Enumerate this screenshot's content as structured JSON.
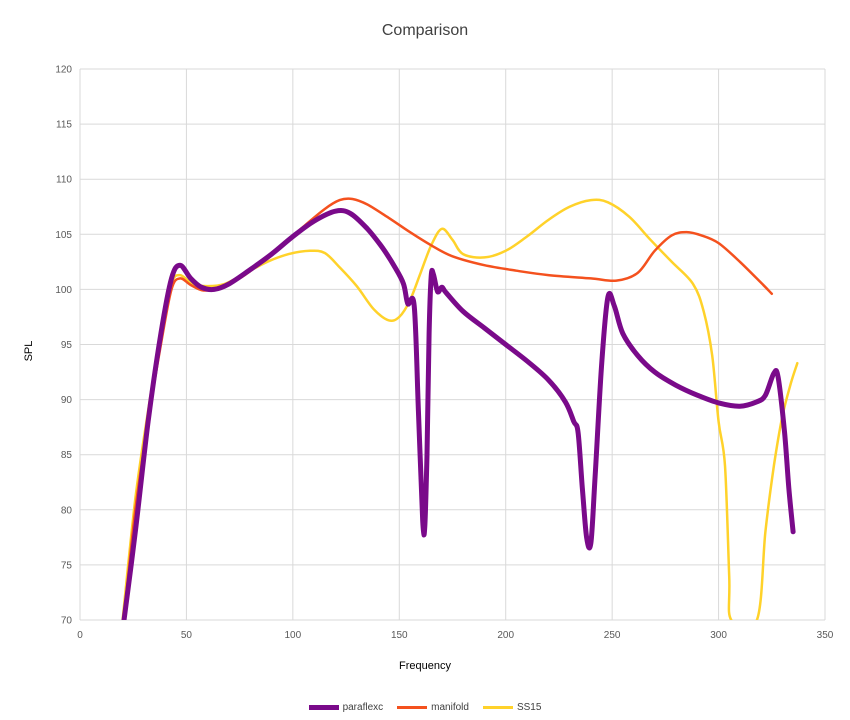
{
  "chart_data": {
    "type": "line",
    "title": "Comparison",
    "xlabel": "Frequency",
    "ylabel": "SPL",
    "xlim": [
      0,
      350
    ],
    "ylim": [
      70,
      120
    ],
    "xticks": [
      0,
      50,
      100,
      150,
      200,
      250,
      300,
      350
    ],
    "yticks": [
      70,
      75,
      80,
      85,
      90,
      95,
      100,
      105,
      110,
      115,
      120
    ],
    "grid": true,
    "legend_position": "bottom",
    "series": [
      {
        "name": "paraflexc",
        "color": "#7a0a8a",
        "width": 5,
        "points": [
          [
            20,
            69
          ],
          [
            26,
            78
          ],
          [
            32,
            88
          ],
          [
            38,
            96
          ],
          [
            43,
            101
          ],
          [
            47,
            102.2
          ],
          [
            52,
            101
          ],
          [
            57,
            100.2
          ],
          [
            63,
            100
          ],
          [
            70,
            100.5
          ],
          [
            80,
            101.8
          ],
          [
            90,
            103.2
          ],
          [
            100,
            104.8
          ],
          [
            110,
            106.2
          ],
          [
            120,
            107.1
          ],
          [
            127,
            106.9
          ],
          [
            135,
            105.5
          ],
          [
            142,
            103.8
          ],
          [
            148,
            102
          ],
          [
            152,
            100.5
          ],
          [
            154,
            98.7
          ],
          [
            157,
            98.5
          ],
          [
            159,
            89
          ],
          [
            161,
            79
          ],
          [
            162,
            78.5
          ],
          [
            163,
            85
          ],
          [
            164,
            96
          ],
          [
            165,
            101.2
          ],
          [
            166,
            101.4
          ],
          [
            168,
            99.8
          ],
          [
            170,
            100.2
          ],
          [
            172,
            99.7
          ],
          [
            180,
            98
          ],
          [
            190,
            96.5
          ],
          [
            200,
            95
          ],
          [
            210,
            93.5
          ],
          [
            220,
            91.8
          ],
          [
            228,
            89.8
          ],
          [
            232,
            88
          ],
          [
            234,
            87
          ],
          [
            236,
            82
          ],
          [
            238,
            77.5
          ],
          [
            240,
            77
          ],
          [
            242,
            83
          ],
          [
            245,
            93
          ],
          [
            248,
            99.3
          ],
          [
            251,
            98.5
          ],
          [
            255,
            96
          ],
          [
            262,
            94
          ],
          [
            270,
            92.5
          ],
          [
            280,
            91.3
          ],
          [
            290,
            90.4
          ],
          [
            300,
            89.7
          ],
          [
            310,
            89.4
          ],
          [
            318,
            89.8
          ],
          [
            322,
            90.4
          ],
          [
            326,
            92.4
          ],
          [
            328,
            92
          ],
          [
            331,
            87
          ],
          [
            333,
            82
          ],
          [
            335,
            78
          ]
        ]
      },
      {
        "name": "manifold",
        "color": "#f4511e",
        "width": 2.5,
        "points": [
          [
            20,
            69
          ],
          [
            26,
            80
          ],
          [
            32,
            88
          ],
          [
            38,
            95
          ],
          [
            43,
            100
          ],
          [
            47,
            101
          ],
          [
            52,
            100.4
          ],
          [
            58,
            99.9
          ],
          [
            65,
            100.2
          ],
          [
            75,
            101
          ],
          [
            85,
            102.4
          ],
          [
            95,
            104
          ],
          [
            105,
            105.7
          ],
          [
            115,
            107.3
          ],
          [
            122,
            108.1
          ],
          [
            128,
            108.2
          ],
          [
            135,
            107.7
          ],
          [
            145,
            106.5
          ],
          [
            155,
            105.2
          ],
          [
            165,
            104
          ],
          [
            175,
            103
          ],
          [
            190,
            102.2
          ],
          [
            205,
            101.7
          ],
          [
            220,
            101.3
          ],
          [
            240,
            101
          ],
          [
            252,
            100.8
          ],
          [
            262,
            101.5
          ],
          [
            270,
            103.5
          ],
          [
            278,
            104.9
          ],
          [
            285,
            105.2
          ],
          [
            292,
            104.9
          ],
          [
            300,
            104.2
          ],
          [
            310,
            102.5
          ],
          [
            320,
            100.6
          ],
          [
            325,
            99.6
          ]
        ]
      },
      {
        "name": "SS15",
        "color": "#ffd22a",
        "width": 2.5,
        "points": [
          [
            20,
            70
          ],
          [
            26,
            81
          ],
          [
            32,
            89
          ],
          [
            38,
            96
          ],
          [
            43,
            100.5
          ],
          [
            47,
            101.3
          ],
          [
            53,
            100.5
          ],
          [
            60,
            100.3
          ],
          [
            68,
            100.5
          ],
          [
            78,
            101.5
          ],
          [
            88,
            102.5
          ],
          [
            98,
            103.2
          ],
          [
            108,
            103.5
          ],
          [
            115,
            103.3
          ],
          [
            122,
            102
          ],
          [
            130,
            100.3
          ],
          [
            138,
            98.2
          ],
          [
            145,
            97.2
          ],
          [
            150,
            97.5
          ],
          [
            155,
            99
          ],
          [
            160,
            101.5
          ],
          [
            165,
            104
          ],
          [
            170,
            105.5
          ],
          [
            175,
            104.5
          ],
          [
            180,
            103.2
          ],
          [
            190,
            102.9
          ],
          [
            200,
            103.5
          ],
          [
            210,
            104.8
          ],
          [
            220,
            106.3
          ],
          [
            230,
            107.5
          ],
          [
            240,
            108.1
          ],
          [
            248,
            107.9
          ],
          [
            258,
            106.6
          ],
          [
            268,
            104.5
          ],
          [
            278,
            102.5
          ],
          [
            288,
            100.5
          ],
          [
            293,
            98
          ],
          [
            297,
            94
          ],
          [
            300,
            88
          ],
          [
            303,
            84
          ],
          [
            305,
            74
          ],
          [
            306,
            70
          ],
          [
            318,
            70
          ],
          [
            322,
            78
          ],
          [
            326,
            84
          ],
          [
            330,
            88.5
          ],
          [
            334,
            91.5
          ],
          [
            337,
            93.3
          ]
        ]
      }
    ]
  }
}
